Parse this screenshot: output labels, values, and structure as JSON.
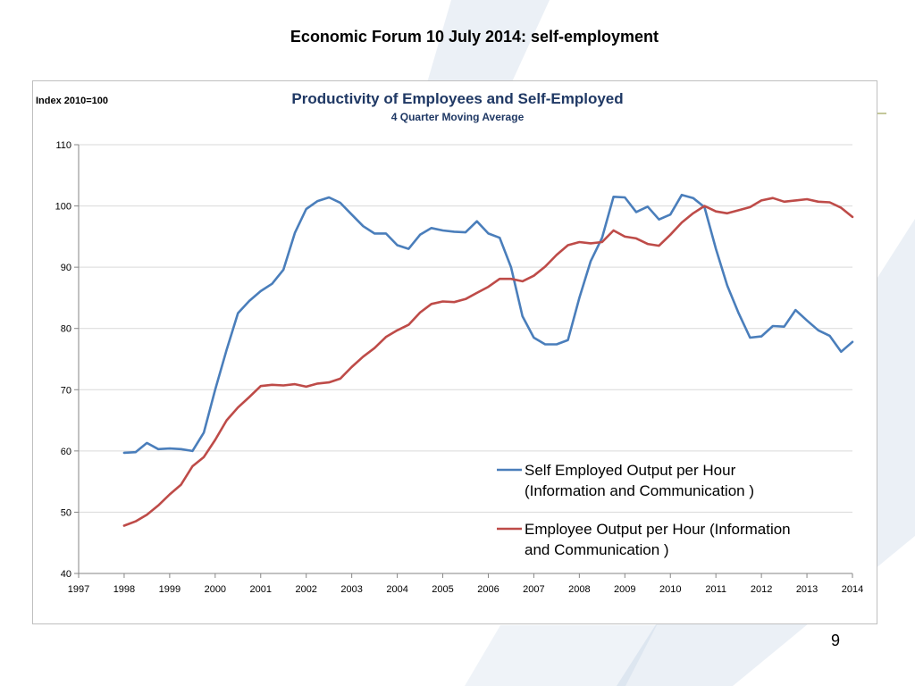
{
  "slide": {
    "title": "Economic Forum 10 July 2014: self-employment",
    "page_number": "9"
  },
  "colors": {
    "series_self_employed": "#4A7EBB",
    "series_employee": "#BE4B48",
    "chart_title": "#1F3864",
    "gridline": "#D9D9D9",
    "axis": "#868686",
    "decor_band": "#8EAACC",
    "decor_olive": "#C4C89A"
  },
  "chart_data": {
    "type": "line",
    "title": "Productivity of Employees and Self-Employed",
    "subtitle": "4 Quarter Moving Average",
    "y_unit_label": "Index 2010=100",
    "ylim": [
      40,
      110
    ],
    "yticks": [
      40,
      50,
      60,
      70,
      80,
      90,
      100,
      110
    ],
    "xlim": [
      1997,
      2014
    ],
    "xticks": [
      "1997",
      "1998",
      "1999",
      "2000",
      "2001",
      "2002",
      "2003",
      "2004",
      "2005",
      "2006",
      "2007",
      "2008",
      "2009",
      "2010",
      "2011",
      "2012",
      "2013",
      "2014"
    ],
    "grid": "horizontal",
    "legend_position": "bottom-right",
    "x": [
      1998.0,
      1998.25,
      1998.5,
      1998.75,
      1999.0,
      1999.25,
      1999.5,
      1999.75,
      2000.0,
      2000.25,
      2000.5,
      2000.75,
      2001.0,
      2001.25,
      2001.5,
      2001.75,
      2002.0,
      2002.25,
      2002.5,
      2002.75,
      2003.0,
      2003.25,
      2003.5,
      2003.75,
      2004.0,
      2004.25,
      2004.5,
      2004.75,
      2005.0,
      2005.25,
      2005.5,
      2005.75,
      2006.0,
      2006.25,
      2006.5,
      2006.75,
      2007.0,
      2007.25,
      2007.5,
      2007.75,
      2008.0,
      2008.25,
      2008.5,
      2008.75,
      2009.0,
      2009.25,
      2009.5,
      2009.75,
      2010.0,
      2010.25,
      2010.5,
      2010.75,
      2011.0,
      2011.25,
      2011.5,
      2011.75,
      2012.0,
      2012.25,
      2012.5,
      2012.75,
      2013.0,
      2013.25,
      2013.5,
      2013.75,
      2014.0
    ],
    "series": [
      {
        "name": "Self Employed Output per Hour (Information and Communication )",
        "values": [
          59.7,
          59.8,
          61.3,
          60.3,
          60.4,
          60.3,
          60.0,
          63.0,
          70.0,
          76.5,
          82.5,
          84.5,
          86.1,
          87.3,
          89.6,
          95.6,
          99.5,
          100.8,
          101.4,
          100.5,
          98.6,
          96.7,
          95.5,
          95.5,
          93.6,
          93.0,
          95.3,
          96.4,
          96.0,
          95.8,
          95.7,
          97.5,
          95.5,
          94.8,
          90.0,
          82.0,
          78.5,
          77.4,
          77.4,
          78.1,
          85.0,
          91.0,
          94.8,
          101.5,
          101.4,
          99.0,
          99.9,
          97.8,
          98.6,
          101.8,
          101.3,
          99.8,
          93.0,
          87.0,
          82.5,
          78.5,
          78.7,
          80.4,
          80.3,
          83.0,
          81.3,
          79.7,
          78.8,
          76.2,
          77.8
        ]
      },
      {
        "name": "Employee Output per Hour (Information and Communication )",
        "values": [
          47.8,
          48.5,
          49.6,
          51.1,
          52.9,
          54.5,
          57.5,
          59.0,
          61.8,
          65.0,
          67.1,
          68.8,
          70.6,
          70.8,
          70.7,
          70.9,
          70.5,
          71.0,
          71.2,
          71.8,
          73.7,
          75.4,
          76.8,
          78.6,
          79.7,
          80.6,
          82.6,
          84.0,
          84.4,
          84.3,
          84.8,
          85.8,
          86.8,
          88.1,
          88.1,
          87.7,
          88.6,
          90.1,
          92.0,
          93.6,
          94.1,
          93.9,
          94.1,
          96.0,
          95.0,
          94.7,
          93.8,
          93.5,
          95.3,
          97.3,
          98.8,
          100.0,
          99.1,
          98.8,
          99.3,
          99.8,
          100.9,
          101.3,
          100.7,
          100.9,
          101.1,
          100.7,
          100.6,
          99.7,
          98.2
        ]
      }
    ]
  }
}
